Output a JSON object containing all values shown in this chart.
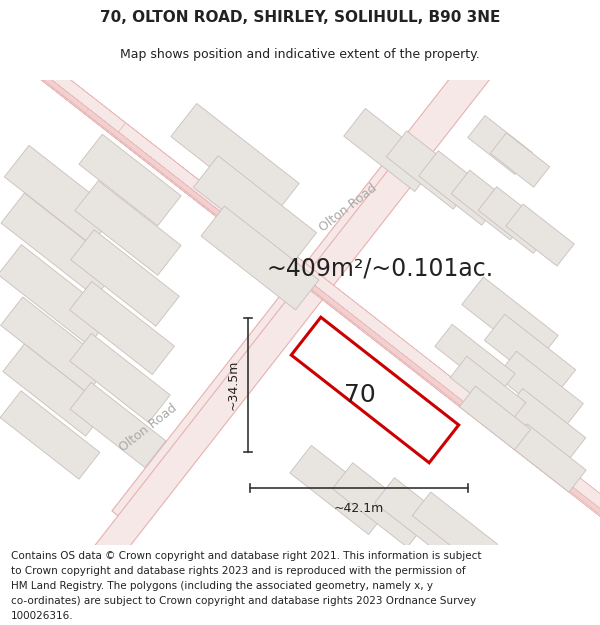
{
  "title": "70, OLTON ROAD, SHIRLEY, SOLIHULL, B90 3NE",
  "subtitle": "Map shows position and indicative extent of the property.",
  "area_text": "~409m²/~0.101ac.",
  "label_70": "70",
  "dim_width": "~42.1m",
  "dim_height": "~34.5m",
  "road_label_upper": "Olton Road",
  "road_label_lower": "Olton Road",
  "footer_lines": [
    "Contains OS data © Crown copyright and database right 2021. This information is subject",
    "to Crown copyright and database rights 2023 and is reproduced with the permission of",
    "HM Land Registry. The polygons (including the associated geometry, namely x, y",
    "co-ordinates) are subject to Crown copyright and database rights 2023 Ordnance Survey",
    "100026316."
  ],
  "map_bg": "#f7f4f2",
  "road_fill": "#f7e8e8",
  "road_edge": "#e8b0b0",
  "road_line": "#e8a8a8",
  "building_fill": "#e8e4e0",
  "building_edge": "#c8c0bc",
  "plot_fill": "#ffffff",
  "plot_edge": "#cc0000",
  "dim_color": "#333333",
  "text_color": "#222222",
  "road_text_color": "#aaaaaa",
  "title_fontsize": 11,
  "subtitle_fontsize": 9,
  "area_fontsize": 17,
  "label_fontsize": 18,
  "dim_fontsize": 9,
  "road_label_fontsize": 9,
  "footer_fontsize": 7.5,
  "fig_width": 6.0,
  "fig_height": 6.25
}
